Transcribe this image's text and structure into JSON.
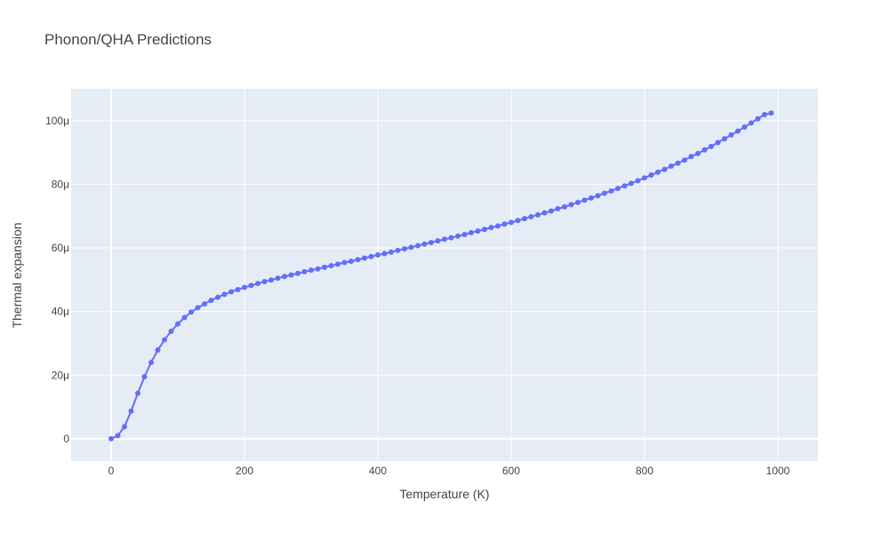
{
  "chart_data": {
    "type": "line",
    "title": "Phonon/QHA Predictions",
    "xlabel": "Temperature (K)",
    "ylabel": "Thermal expansion",
    "xlim": [
      -60,
      1060
    ],
    "ylim": [
      -7,
      110
    ],
    "x_ticks": [
      0,
      200,
      400,
      600,
      800,
      1000
    ],
    "x_tick_labels": [
      "0",
      "200",
      "400",
      "600",
      "800",
      "1000"
    ],
    "y_ticks": [
      0,
      20,
      40,
      60,
      80,
      100
    ],
    "y_tick_labels": [
      "0",
      "20μ",
      "40μ",
      "60μ",
      "80μ",
      "100μ"
    ],
    "grid": true,
    "series": [
      {
        "mode": "lines+markers",
        "color": "#636efa",
        "x": [
          0,
          10,
          20,
          30,
          40,
          50,
          60,
          70,
          80,
          90,
          100,
          110,
          120,
          130,
          140,
          150,
          160,
          170,
          180,
          190,
          200,
          210,
          220,
          230,
          240,
          250,
          260,
          270,
          280,
          290,
          300,
          310,
          320,
          330,
          340,
          350,
          360,
          370,
          380,
          390,
          400,
          410,
          420,
          430,
          440,
          450,
          460,
          470,
          480,
          490,
          500,
          510,
          520,
          530,
          540,
          550,
          560,
          570,
          580,
          590,
          600,
          610,
          620,
          630,
          640,
          650,
          660,
          670,
          680,
          690,
          700,
          710,
          720,
          730,
          740,
          750,
          760,
          770,
          780,
          790,
          800,
          810,
          820,
          830,
          840,
          850,
          860,
          870,
          880,
          890,
          900,
          910,
          920,
          930,
          940,
          950,
          960,
          970,
          980,
          990
        ],
        "y": [
          0,
          1.0,
          3.8,
          8.7,
          14.3,
          19.5,
          24.0,
          27.9,
          31.1,
          33.8,
          36.1,
          38.1,
          39.8,
          41.2,
          42.4,
          43.5,
          44.5,
          45.4,
          46.2,
          46.9,
          47.6,
          48.2,
          48.8,
          49.4,
          49.9,
          50.5,
          51.0,
          51.5,
          52.0,
          52.5,
          53.0,
          53.4,
          53.9,
          54.4,
          54.9,
          55.4,
          55.8,
          56.3,
          56.8,
          57.3,
          57.8,
          58.2,
          58.7,
          59.2,
          59.7,
          60.2,
          60.7,
          61.2,
          61.7,
          62.2,
          62.7,
          63.2,
          63.7,
          64.2,
          64.8,
          65.3,
          65.8,
          66.4,
          66.9,
          67.5,
          68.0,
          68.6,
          69.2,
          69.8,
          70.4,
          71.0,
          71.6,
          72.3,
          72.9,
          73.6,
          74.3,
          75.0,
          75.7,
          76.4,
          77.2,
          77.9,
          78.7,
          79.5,
          80.3,
          81.1,
          82.0,
          82.9,
          83.8,
          84.7,
          85.7,
          86.6,
          87.6,
          88.7,
          89.7,
          90.8,
          91.9,
          93.1,
          94.3,
          95.5,
          96.7,
          98.0,
          99.3,
          100.6,
          101.9,
          102.4
        ]
      }
    ]
  }
}
